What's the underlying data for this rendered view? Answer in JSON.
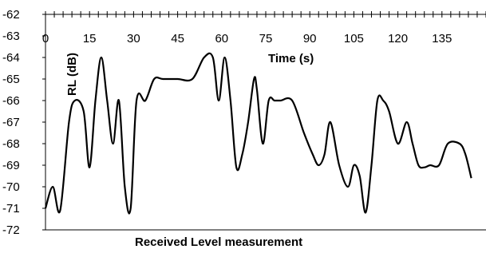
{
  "chart_data": {
    "type": "line",
    "title": "Received Level measurement",
    "xlabel": "Time (s)",
    "ylabel": "RL (dB)",
    "xlim": [
      0,
      150
    ],
    "ylim": [
      -72,
      -62
    ],
    "x_ticks": [
      "0",
      "15",
      "30",
      "45",
      "60",
      "75",
      "90",
      "105",
      "120",
      "135"
    ],
    "y_ticks": [
      "-62",
      "-63",
      "-64",
      "-65",
      "-66",
      "-67",
      "-68",
      "-69",
      "-70",
      "-71",
      "-72"
    ],
    "x_axis_position": "top",
    "grid": false,
    "legend": "none",
    "line_color": "#000000",
    "series": [
      {
        "x": [
          0,
          2.5,
          5,
          8,
          10,
          13,
          15,
          17,
          19,
          21,
          23,
          25,
          27,
          29,
          31,
          34,
          37,
          40,
          45,
          50,
          54,
          57,
          59,
          61,
          63,
          65,
          67,
          69,
          71,
          72,
          74,
          76,
          78,
          80,
          84,
          88,
          91,
          93,
          95,
          97,
          100,
          103,
          105,
          107,
          109,
          111,
          113,
          115,
          117,
          120,
          123,
          125,
          127,
          129,
          131,
          134,
          137,
          141,
          143,
          145
        ],
        "y": [
          -71,
          -70,
          -71.1,
          -67,
          -66,
          -66.5,
          -69.1,
          -66,
          -64,
          -66,
          -68,
          -66,
          -70,
          -71,
          -66,
          -66,
          -65,
          -65,
          -65,
          -65,
          -64,
          -64,
          -66,
          -64,
          -66,
          -69.1,
          -68.5,
          -67,
          -65,
          -65.5,
          -68,
          -66,
          -66,
          -66,
          -66,
          -67.5,
          -68.5,
          -69,
          -68.5,
          -67,
          -69,
          -70,
          -69,
          -69.5,
          -71.2,
          -69,
          -66,
          -66,
          -66.5,
          -68,
          -67,
          -68,
          -69,
          -69.1,
          -69,
          -69,
          -68,
          -68,
          -68.5,
          -69.6
        ]
      }
    ]
  }
}
